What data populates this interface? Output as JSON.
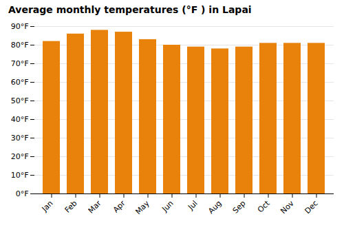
{
  "chart_data": {
    "type": "bar",
    "title": "Average monthly temperatures (°F ) in Lapai",
    "categories": [
      "Jan",
      "Feb",
      "Mar",
      "Apr",
      "May",
      "Jun",
      "Jul",
      "Aug",
      "Sep",
      "Oct",
      "Nov",
      "Dec"
    ],
    "values": [
      82,
      86,
      88,
      87,
      83,
      80,
      79,
      78,
      79,
      81,
      81,
      81
    ],
    "color": "#E8820A",
    "ylim": [
      0,
      90
    ],
    "yticks": [
      {
        "value": 0,
        "label": "0°F"
      },
      {
        "value": 10,
        "label": "10°F"
      },
      {
        "value": 20,
        "label": "20°F"
      },
      {
        "value": 30,
        "label": "30°F"
      },
      {
        "value": 40,
        "label": "40°F"
      },
      {
        "value": 50,
        "label": "50°F"
      },
      {
        "value": 60,
        "label": "60°F"
      },
      {
        "value": 70,
        "label": "70°F"
      },
      {
        "value": 80,
        "label": "80°F"
      },
      {
        "value": 90,
        "label": "90°F"
      }
    ],
    "grid": true
  }
}
